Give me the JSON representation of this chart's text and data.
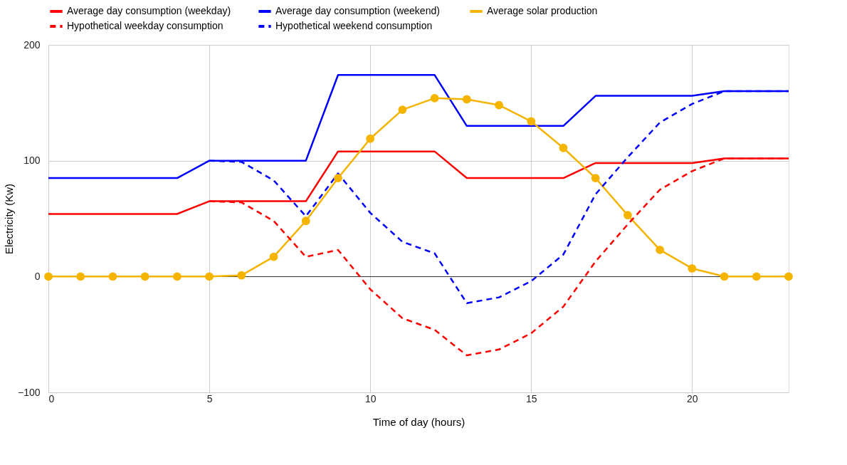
{
  "chart_data": {
    "type": "line",
    "xlabel": "Time of day (hours)",
    "ylabel": "Electricity (Kw)",
    "xlim": [
      0,
      23
    ],
    "xticks": [
      0,
      5,
      10,
      15,
      20
    ],
    "ylim": [
      -100,
      200
    ],
    "yticks": [
      -100,
      0,
      100,
      200
    ],
    "grid": true,
    "legend": "top",
    "series": [
      {
        "name": "Average day consumption (weekday)",
        "color": "#ff0000",
        "line_style": "solid",
        "marker": "none",
        "x": [
          0,
          1,
          2,
          3,
          4,
          5,
          6,
          7,
          8,
          9,
          10,
          11,
          12,
          13,
          14,
          15,
          16,
          17,
          18,
          19,
          20,
          21,
          22,
          23
        ],
        "values": [
          54,
          54,
          54,
          54,
          54,
          65,
          65,
          65,
          65,
          108,
          108,
          108,
          108,
          85,
          85,
          85,
          85,
          98,
          98,
          98,
          98,
          102,
          102,
          102
        ]
      },
      {
        "name": "Average  day consumption (weekend)",
        "color": "#0000ff",
        "line_style": "solid",
        "marker": "none",
        "x": [
          0,
          1,
          2,
          3,
          4,
          5,
          6,
          7,
          8,
          9,
          10,
          11,
          12,
          13,
          14,
          15,
          16,
          17,
          18,
          19,
          20,
          21,
          22,
          23
        ],
        "values": [
          85,
          85,
          85,
          85,
          85,
          100,
          100,
          100,
          100,
          174,
          174,
          174,
          174,
          130,
          130,
          130,
          130,
          156,
          156,
          156,
          156,
          160,
          160,
          160
        ]
      },
      {
        "name": "Average solar production",
        "color": "#f4b400",
        "line_style": "solid",
        "marker": "circle",
        "x": [
          0,
          1,
          2,
          3,
          4,
          5,
          6,
          7,
          8,
          9,
          10,
          11,
          12,
          13,
          14,
          15,
          16,
          17,
          18,
          19,
          20,
          21,
          22,
          23
        ],
        "values": [
          0,
          0,
          0,
          0,
          0,
          0,
          1,
          17,
          48,
          85,
          119,
          144,
          154,
          153,
          148,
          134,
          111,
          85,
          53,
          23,
          7,
          0,
          0,
          0
        ]
      },
      {
        "name": "Hypothetical weekday consumption",
        "color": "#ff0000",
        "line_style": "dashed",
        "marker": "none",
        "x": [
          5,
          6,
          7,
          8,
          9,
          10,
          11,
          12,
          13,
          14,
          15,
          16,
          17,
          18,
          19,
          20,
          21,
          22,
          23
        ],
        "values": [
          65,
          64,
          48,
          17,
          23,
          -11,
          -36,
          -46,
          -68,
          -63,
          -49,
          -26,
          13,
          45,
          75,
          91,
          102,
          102,
          102
        ]
      },
      {
        "name": "Hypothetical weekend consumption",
        "color": "#0000ff",
        "line_style": "dashed",
        "marker": "none",
        "x": [
          5,
          6,
          7,
          8,
          9,
          10,
          11,
          12,
          13,
          14,
          15,
          16,
          17,
          18,
          19,
          20,
          21,
          22,
          23
        ],
        "values": [
          100,
          99,
          83,
          52,
          89,
          55,
          30,
          20,
          -23,
          -18,
          -4,
          19,
          71,
          103,
          133,
          149,
          160,
          160,
          160
        ]
      }
    ]
  }
}
